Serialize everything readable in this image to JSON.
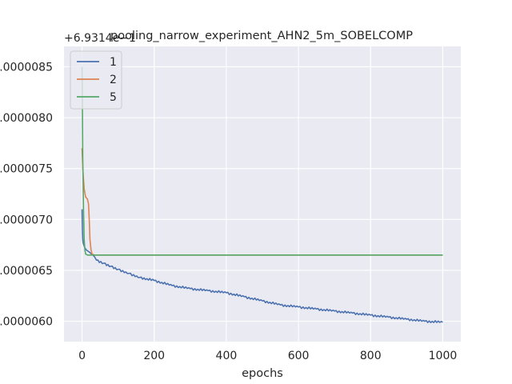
{
  "chart_data": {
    "type": "line",
    "title": "pooling_narrow_experiment_AHN2_5m_SOBELCOMP",
    "xlabel": "epochs",
    "ylabel": "",
    "y_offset_label": "+6.9314e−1",
    "xlim": [
      -50,
      1050
    ],
    "ylim": [
      5.8e-06,
      8.7e-06
    ],
    "x_ticks": [
      0,
      200,
      400,
      600,
      800,
      1000
    ],
    "x_tick_labels": [
      "0",
      "200",
      "400",
      "600",
      "800",
      "1000"
    ],
    "y_ticks": [
      6e-06,
      6.5e-06,
      7e-06,
      7.5e-06,
      8e-06,
      8.5e-06
    ],
    "y_tick_labels": [
      "0.0000060",
      "0.0000065",
      "0.0000070",
      "0.0000075",
      "0.0000080",
      "0.0000085"
    ],
    "grid": true,
    "legend_position": "top-left",
    "colors": {
      "background": "#eaeaf2",
      "grid": "#ffffff",
      "text": "#262626"
    },
    "series": [
      {
        "name": "1",
        "color": "#4c72b0",
        "x": [
          0,
          1,
          2,
          3,
          5,
          8,
          12,
          20,
          30,
          40,
          60,
          80,
          100,
          130,
          160,
          200,
          250,
          300,
          350,
          400,
          450,
          500,
          550,
          600,
          650,
          700,
          750,
          800,
          850,
          900,
          950,
          1000
        ],
        "y": [
          7.1e-06,
          6.9e-06,
          6.8e-06,
          6.77e-06,
          6.75e-06,
          6.72e-06,
          6.7e-06,
          6.68e-06,
          6.65e-06,
          6.6e-06,
          6.57e-06,
          6.54e-06,
          6.51e-06,
          6.47e-06,
          6.43e-06,
          6.4e-06,
          6.35e-06,
          6.32e-06,
          6.3e-06,
          6.28e-06,
          6.24e-06,
          6.2e-06,
          6.16e-06,
          6.14e-06,
          6.12e-06,
          6.1e-06,
          6.08e-06,
          6.06e-06,
          6.04e-06,
          6.02e-06,
          6e-06,
          5.99e-06
        ]
      },
      {
        "name": "2",
        "color": "#dd8452",
        "x": [
          0,
          1,
          2,
          4,
          6,
          10,
          15,
          18,
          20,
          22,
          25,
          28,
          35,
          1000
        ],
        "y": [
          7.7e-06,
          7.6e-06,
          7.5e-06,
          7.4e-06,
          7.3e-06,
          7.22e-06,
          7.2e-06,
          7.15e-06,
          7e-06,
          6.8e-06,
          6.7e-06,
          6.66e-06,
          6.65e-06,
          6.65e-06
        ]
      },
      {
        "name": "5",
        "color": "#55a868",
        "x": [
          0,
          1,
          2,
          4,
          6,
          8,
          10,
          15,
          20,
          1000
        ],
        "y": [
          8.5e-06,
          8.1e-06,
          7.6e-06,
          7.1e-06,
          6.8e-06,
          6.7e-06,
          6.66e-06,
          6.65e-06,
          6.65e-06,
          6.65e-06
        ]
      }
    ]
  }
}
